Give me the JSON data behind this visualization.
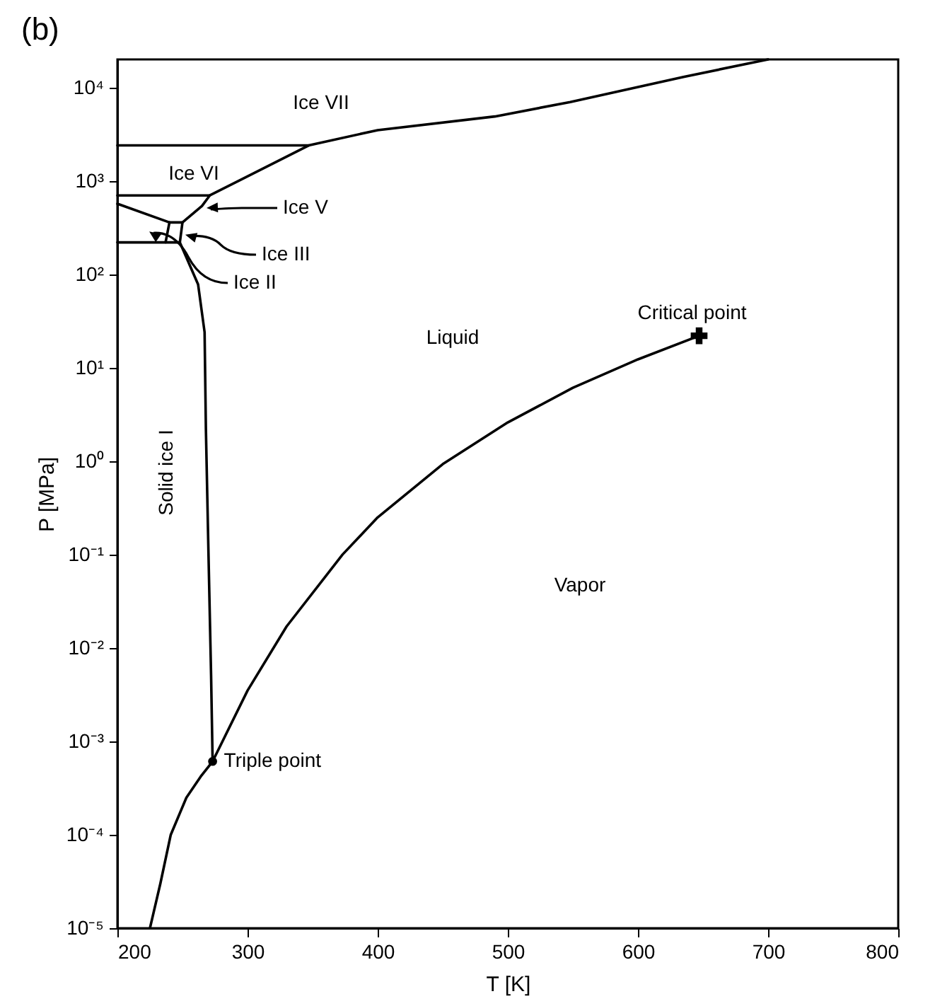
{
  "chart_data": {
    "type": "line",
    "title": "(b)",
    "xlabel": "T [K]",
    "ylabel": "P [MPa]",
    "xlim": [
      200,
      800
    ],
    "xticks": [
      200,
      300,
      400,
      500,
      600,
      700,
      800
    ],
    "ylim": [
      1e-05,
      20000
    ],
    "log": "y",
    "yticks": [
      {
        "value": 1e-05,
        "label": "10⁻⁵"
      },
      {
        "value": 0.0001,
        "label": "10⁻⁴"
      },
      {
        "value": 0.001,
        "label": "10⁻³"
      },
      {
        "value": 0.01,
        "label": "10⁻²"
      },
      {
        "value": 0.1,
        "label": "10⁻¹"
      },
      {
        "value": 1,
        "label": "10⁰"
      },
      {
        "value": 10,
        "label": "10¹"
      },
      {
        "value": 100,
        "label": "10²"
      },
      {
        "value": 1000,
        "label": "10³"
      },
      {
        "value": 10000,
        "label": "10⁴"
      }
    ],
    "series": [
      {
        "color": "#000000",
        "x": [
          200,
          347,
          400,
          490,
          548,
          635,
          700
        ],
        "values": [
          2400,
          2400,
          3500,
          4900,
          7000,
          13000,
          20000
        ]
      },
      {
        "color": "#000000",
        "x": [
          200,
          271,
          347
        ],
        "values": [
          700,
          700,
          2400
        ]
      },
      {
        "color": "#000000",
        "x": [
          271,
          265,
          250,
          240,
          200
        ],
        "values": [
          700,
          540,
          360,
          360,
          570
        ]
      },
      {
        "color": "#000000",
        "x": [
          240,
          237,
          248,
          250
        ],
        "values": [
          360,
          220,
          220,
          360
        ]
      },
      {
        "color": "#000000",
        "x": [
          200,
          237
        ],
        "values": [
          220,
          220
        ]
      },
      {
        "color": "#000000",
        "x": [
          248,
          262,
          267,
          268,
          270,
          272,
          273.16,
          300,
          330,
          373,
          400,
          450,
          500,
          550,
          600,
          647
        ],
        "values": [
          220,
          78,
          24,
          2.2,
          0.1,
          0.005,
          0.00061,
          0.0035,
          0.017,
          0.1,
          0.25,
          0.93,
          2.6,
          6.1,
          12.3,
          22
        ]
      },
      {
        "color": "#000000",
        "x": [
          225,
          233,
          241,
          253,
          264,
          273.16
        ],
        "values": [
          1e-05,
          3e-05,
          0.0001,
          0.00025,
          0.00042,
          0.00061
        ]
      },
      {
        "type": "scatter",
        "marker": "circle",
        "color": "#000000",
        "x": [
          273.16
        ],
        "values": [
          0.00061
        ]
      },
      {
        "type": "scatter",
        "marker": "cross",
        "color": "#000000",
        "x": [
          647
        ],
        "values": [
          22
        ]
      }
    ],
    "annotations": [
      "Ice VII",
      "Ice VI",
      "Ice V",
      {
        "text": "Ice III",
        "x": 249,
        "y": 274
      },
      "Ice II",
      "Liquid",
      "Solid ice I",
      "Vapor",
      {
        "text": "Critical point",
        "x": 647,
        "y": 22
      },
      {
        "text": "Triple point",
        "x": 273.16,
        "y": 0.00061
      }
    ]
  }
}
